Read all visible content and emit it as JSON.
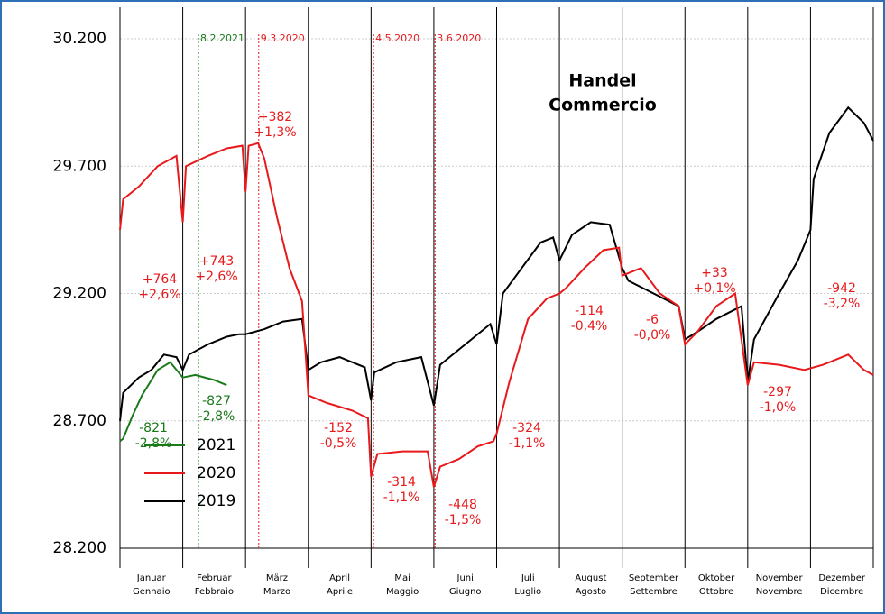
{
  "chart_data": {
    "type": "line",
    "heading": "Handel",
    "heading_2": "Commercio",
    "categories": [
      "Januar",
      "Februar",
      "März",
      "April",
      "Mai",
      "Juni",
      "Juli",
      "August",
      "September",
      "Oktober",
      "November",
      "Dezember"
    ],
    "categories_2": [
      "Gennaio",
      "Febbraio",
      "Marzo",
      "Aprile",
      "Maggio",
      "Giugno",
      "Luglio",
      "Agosto",
      "Settembre",
      "Ottobre",
      "Novembre",
      "Dicembre"
    ],
    "xlim": [
      0,
      12
    ],
    "ylim": [
      28200,
      30200
    ],
    "yticks": [
      {
        "value": 28200,
        "label": "28.200"
      },
      {
        "value": 28700,
        "label": "28.700"
      },
      {
        "value": 29200,
        "label": "29.200"
      },
      {
        "value": 29700,
        "label": "29.700"
      },
      {
        "value": 30200,
        "label": "30.200"
      }
    ],
    "grid": true,
    "legend": "lower left",
    "series": [
      {
        "name": "2021",
        "color": "#1a7a1a",
        "x": [
          0,
          0.05,
          0.2,
          0.35,
          0.6,
          0.8,
          1.0,
          1.2,
          1.5,
          1.7
        ],
        "values": [
          28620,
          28630,
          28720,
          28800,
          28900,
          28930,
          28870,
          28880,
          28860,
          28840
        ]
      },
      {
        "name": "2020",
        "color": "#e8191b",
        "x": [
          0,
          0.05,
          0.3,
          0.6,
          0.9,
          1.0,
          1.05,
          1.4,
          1.7,
          1.95,
          2.0,
          2.05,
          2.2,
          2.3,
          2.5,
          2.7,
          2.9,
          3.0,
          3.3,
          3.7,
          3.95,
          4.0,
          4.1,
          4.5,
          4.9,
          5.0,
          5.1,
          5.4,
          5.7,
          5.95,
          6.0,
          6.2,
          6.5,
          6.8,
          7.0,
          7.1,
          7.4,
          7.7,
          7.95,
          8.0,
          8.3,
          8.6,
          8.9,
          9.0,
          9.2,
          9.5,
          9.8,
          10.0,
          10.1,
          10.5,
          10.9,
          11.2,
          11.6,
          11.85,
          12.0
        ],
        "values": [
          29450,
          29570,
          29620,
          29700,
          29740,
          29480,
          29700,
          29740,
          29770,
          29780,
          29600,
          29780,
          29790,
          29730,
          29500,
          29300,
          29170,
          28800,
          28770,
          28740,
          28710,
          28480,
          28570,
          28580,
          28580,
          28440,
          28520,
          28550,
          28600,
          28620,
          28650,
          28850,
          29100,
          29180,
          29200,
          29220,
          29300,
          29370,
          29380,
          29270,
          29300,
          29200,
          29150,
          29000,
          29050,
          29150,
          29200,
          28840,
          28930,
          28920,
          28900,
          28920,
          28960,
          28900,
          28880
        ]
      },
      {
        "name": "2019",
        "color": "#000000",
        "x": [
          0,
          0.05,
          0.3,
          0.5,
          0.7,
          0.9,
          1.0,
          1.1,
          1.4,
          1.7,
          1.9,
          2.0,
          2.3,
          2.6,
          2.9,
          3.0,
          3.2,
          3.5,
          3.9,
          4.0,
          4.05,
          4.4,
          4.8,
          5.0,
          5.1,
          5.5,
          5.9,
          6.0,
          6.1,
          6.4,
          6.7,
          6.9,
          7.0,
          7.2,
          7.5,
          7.8,
          8.0,
          8.1,
          8.5,
          8.9,
          9.0,
          9.2,
          9.5,
          9.9,
          10.0,
          10.1,
          10.5,
          10.8,
          11.0,
          11.05,
          11.3,
          11.6,
          11.85,
          12.0
        ],
        "values": [
          28700,
          28810,
          28870,
          28900,
          28960,
          28950,
          28900,
          28960,
          29000,
          29030,
          29040,
          29040,
          29060,
          29090,
          29100,
          28900,
          28930,
          28950,
          28910,
          28780,
          28890,
          28930,
          28950,
          28760,
          28920,
          29000,
          29080,
          29000,
          29200,
          29300,
          29400,
          29420,
          29330,
          29430,
          29480,
          29470,
          29300,
          29250,
          29200,
          29150,
          29020,
          29050,
          29100,
          29150,
          28850,
          29020,
          29200,
          29330,
          29450,
          29650,
          29830,
          29930,
          29870,
          29800
        ]
      }
    ],
    "event_lines": [
      {
        "label": "8.2.2021",
        "x": 1.25,
        "color": "#1a7a1a"
      },
      {
        "label": "9.3.2020",
        "x": 2.21,
        "color": "#e8191b"
      },
      {
        "label": "4.5.2020",
        "x": 4.04,
        "color": "#e8191b"
      },
      {
        "label": "3.6.2020",
        "x": 5.02,
        "color": "#e8191b"
      }
    ],
    "change_labels": [
      {
        "lines": [
          "+764",
          "+2,6%"
        ],
        "color": "#e8191b"
      },
      {
        "lines": [
          "+743",
          "+2,6%"
        ],
        "color": "#e8191b"
      },
      {
        "lines": [
          "+382",
          "+1,3%"
        ],
        "color": "#e8191b"
      },
      {
        "lines": [
          "-152",
          "-0,5%"
        ],
        "color": "#e8191b"
      },
      {
        "lines": [
          "-314",
          "-1,1%"
        ],
        "color": "#e8191b"
      },
      {
        "lines": [
          "-448",
          "-1,5%"
        ],
        "color": "#e8191b"
      },
      {
        "lines": [
          "-324",
          "-1,1%"
        ],
        "color": "#e8191b"
      },
      {
        "lines": [
          "-114",
          "-0,4%"
        ],
        "color": "#e8191b"
      },
      {
        "lines": [
          "-6",
          "-0,0%"
        ],
        "color": "#e8191b"
      },
      {
        "lines": [
          "+33",
          "+0,1%"
        ],
        "color": "#e8191b"
      },
      {
        "lines": [
          "-297",
          "-1,0%"
        ],
        "color": "#e8191b"
      },
      {
        "lines": [
          "-942",
          "-3,2%"
        ],
        "color": "#e8191b"
      },
      {
        "lines": [
          "-821",
          "-2,8%"
        ],
        "color": "#1a7a1a"
      },
      {
        "lines": [
          "-827",
          "-2,8%"
        ],
        "color": "#1a7a1a"
      }
    ]
  }
}
